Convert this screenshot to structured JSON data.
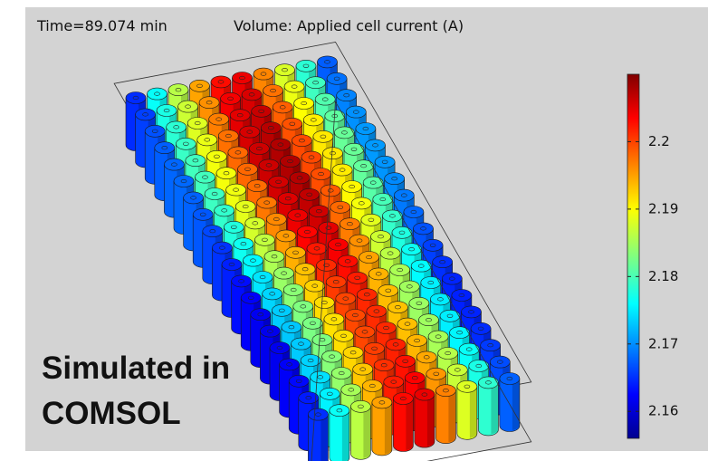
{
  "header": {
    "time": "Time=89.074 min",
    "title": "Volume: Applied cell current (A)"
  },
  "colorbar": {
    "range": [
      2.156,
      2.21
    ],
    "ticks": [
      2.16,
      2.17,
      2.18,
      2.19,
      2.2
    ]
  },
  "overlay": {
    "line1": "Simulated in",
    "line2": "COMSOL"
  }
}
